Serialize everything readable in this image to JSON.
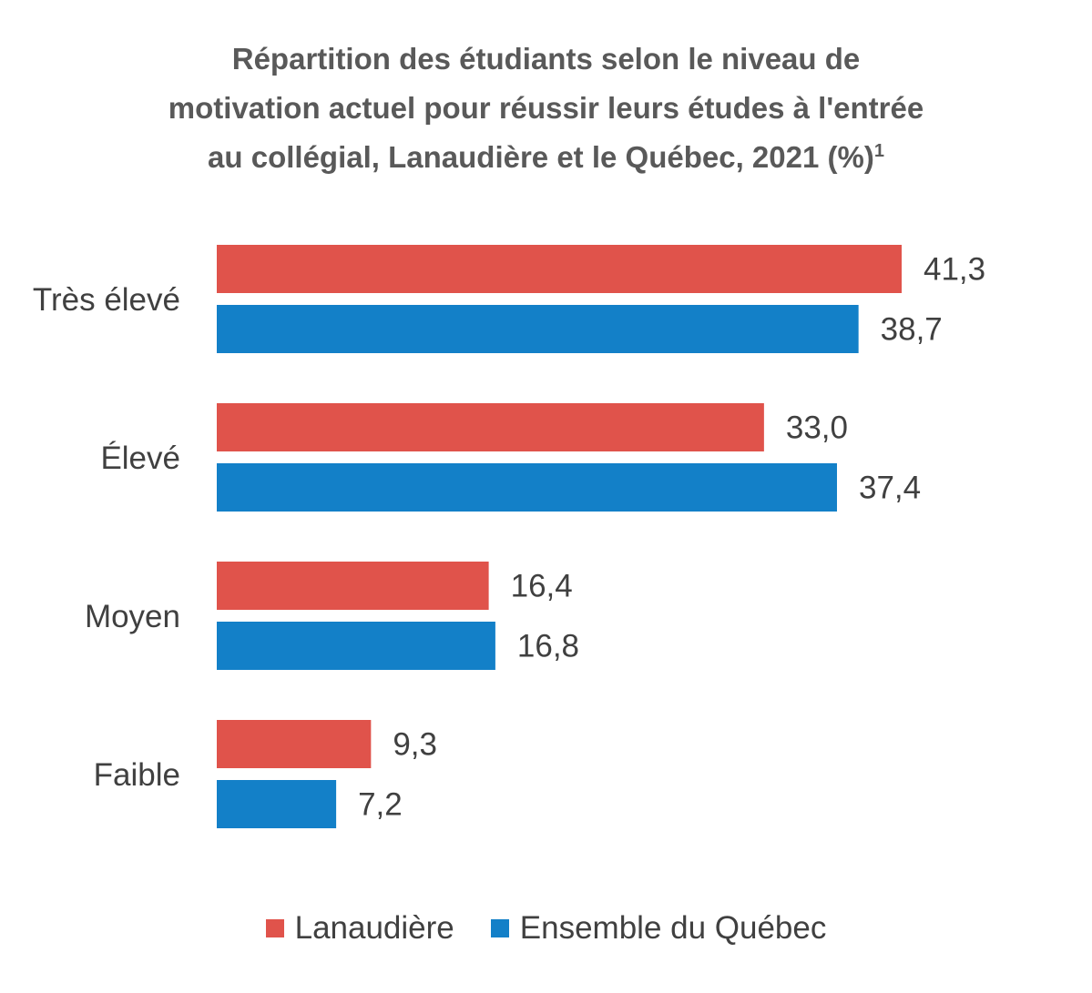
{
  "title": {
    "line1": "Répartition des étudiants selon le niveau de",
    "line2": "motivation actuel pour réussir leurs études à l'entrée",
    "line3": "au collégial, Lanaudière et le Québec, 2021 (%)",
    "footnote_mark": "1"
  },
  "chart_data": {
    "type": "bar",
    "orientation": "horizontal",
    "categories": [
      "Très élevé",
      "Élevé",
      "Moyen",
      "Faible"
    ],
    "series": [
      {
        "name": "Lanaudière",
        "color": "#E0534B",
        "values": [
          41.3,
          33.0,
          16.4,
          9.3
        ],
        "labels": [
          "41,3",
          "33,0",
          "16,4",
          "9,3"
        ]
      },
      {
        "name": "Ensemble du Québec",
        "color": "#1380C8",
        "values": [
          38.7,
          37.4,
          16.8,
          7.2
        ],
        "labels": [
          "38,7",
          "37,4",
          "16,8",
          "7,2"
        ]
      }
    ],
    "xlim": [
      0,
      45
    ],
    "grid": false,
    "legend_position": "bottom"
  }
}
